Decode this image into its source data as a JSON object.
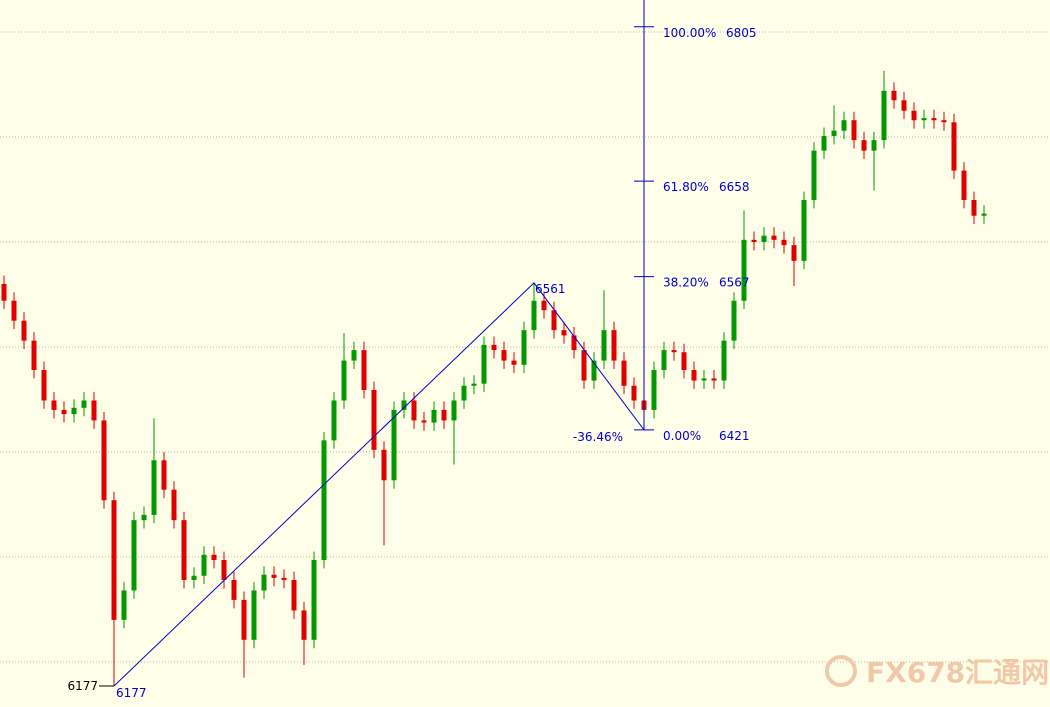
{
  "chart_data": {
    "type": "candlestick",
    "open": [
      6560,
      6544,
      6525,
      6506,
      6478,
      6449,
      6440,
      6436,
      6442,
      6449,
      6430,
      6354,
      6240,
      6268,
      6335,
      6340,
      6392,
      6364,
      6335,
      6278,
      6282,
      6302,
      6297,
      6278,
      6259,
      6221,
      6268,
      6283,
      6280,
      6278,
      6249,
      6221,
      6297,
      6411,
      6449,
      6487,
      6497,
      6459,
      6402,
      6373,
      6440,
      6449,
      6430,
      6428,
      6440,
      6430,
      6449,
      6463,
      6465,
      6502,
      6497,
      6487,
      6483,
      6516,
      6544,
      6535,
      6516,
      6511,
      6497,
      6468,
      6487,
      6516,
      6487,
      6463,
      6449,
      6440,
      6478,
      6497,
      6495,
      6478,
      6468,
      6470,
      6468,
      6506,
      6544,
      6602,
      6600,
      6606,
      6602,
      6597,
      6582,
      6640,
      6687,
      6701,
      6706,
      6716,
      6697,
      6687,
      6697,
      6744,
      6735,
      6725,
      6716,
      6718,
      6716,
      6714,
      6668,
      6640,
      6625
    ],
    "high": [
      6568,
      6552,
      6533,
      6514,
      6486,
      6457,
      6448,
      6450,
      6457,
      6457,
      6438,
      6362,
      6276,
      6343,
      6348,
      6432,
      6400,
      6372,
      6343,
      6290,
      6310,
      6310,
      6305,
      6286,
      6267,
      6276,
      6291,
      6291,
      6288,
      6286,
      6257,
      6305,
      6419,
      6457,
      6513,
      6505,
      6505,
      6467,
      6410,
      6448,
      6457,
      6457,
      6438,
      6448,
      6448,
      6457,
      6471,
      6473,
      6510,
      6510,
      6505,
      6495,
      6524,
      6561,
      6552,
      6543,
      6524,
      6519,
      6505,
      6495,
      6554,
      6524,
      6495,
      6471,
      6457,
      6486,
      6505,
      6505,
      6503,
      6486,
      6478,
      6478,
      6514,
      6552,
      6630,
      6610,
      6614,
      6614,
      6610,
      6605,
      6648,
      6695,
      6709,
      6730,
      6724,
      6724,
      6705,
      6705,
      6763,
      6752,
      6743,
      6733,
      6726,
      6726,
      6724,
      6722,
      6676,
      6648,
      6635
    ],
    "low": [
      6536,
      6517,
      6498,
      6470,
      6441,
      6432,
      6428,
      6428,
      6434,
      6422,
      6346,
      6177,
      6232,
      6260,
      6327,
      6332,
      6356,
      6327,
      6270,
      6270,
      6274,
      6289,
      6270,
      6251,
      6185,
      6213,
      6260,
      6272,
      6270,
      6241,
      6197,
      6213,
      6289,
      6403,
      6441,
      6479,
      6451,
      6394,
      6311,
      6365,
      6432,
      6422,
      6420,
      6420,
      6422,
      6388,
      6441,
      6455,
      6457,
      6489,
      6479,
      6475,
      6475,
      6508,
      6527,
      6508,
      6503,
      6489,
      6460,
      6460,
      6479,
      6479,
      6455,
      6441,
      6421,
      6432,
      6470,
      6487,
      6470,
      6460,
      6460,
      6460,
      6460,
      6498,
      6536,
      6592,
      6592,
      6594,
      6589,
      6558,
      6574,
      6632,
      6679,
      6693,
      6698,
      6689,
      6679,
      6649,
      6689,
      6727,
      6717,
      6708,
      6708,
      6708,
      6706,
      6660,
      6632,
      6617,
      6617
    ],
    "close": [
      6544,
      6525,
      6506,
      6478,
      6449,
      6440,
      6436,
      6442,
      6449,
      6430,
      6354,
      6240,
      6268,
      6335,
      6340,
      6392,
      6364,
      6335,
      6278,
      6282,
      6302,
      6297,
      6278,
      6259,
      6221,
      6268,
      6283,
      6280,
      6278,
      6249,
      6221,
      6297,
      6411,
      6449,
      6487,
      6497,
      6459,
      6402,
      6373,
      6440,
      6449,
      6430,
      6428,
      6440,
      6430,
      6449,
      6463,
      6465,
      6502,
      6497,
      6487,
      6483,
      6516,
      6544,
      6535,
      6516,
      6511,
      6497,
      6468,
      6487,
      6516,
      6487,
      6463,
      6449,
      6440,
      6478,
      6497,
      6495,
      6478,
      6468,
      6470,
      6468,
      6506,
      6544,
      6602,
      6600,
      6606,
      6602,
      6597,
      6582,
      6640,
      6687,
      6701,
      6706,
      6716,
      6697,
      6687,
      6697,
      6744,
      6735,
      6725,
      6716,
      6718,
      6716,
      6714,
      6668,
      6640,
      6625,
      6627
    ],
    "ylim": [
      6157,
      6830.5
    ],
    "yticks": [
      6200,
      6300,
      6400,
      6500,
      6600,
      6700,
      6800
    ],
    "grid": true,
    "up_color": "#009900",
    "down_color": "#e00000",
    "fibonacci": {
      "color": "#0000cc",
      "levels": [
        {
          "ratio": "100.00%",
          "price": 6805
        },
        {
          "ratio": "61.80%",
          "price": 6658
        },
        {
          "ratio": "38.20%",
          "price": 6567
        },
        {
          "ratio": "0.00%",
          "price": 6421
        }
      ],
      "extension": "-36.46%",
      "pivots": [
        6177,
        6561,
        6421
      ]
    },
    "watermark": "FX678汇通网"
  }
}
